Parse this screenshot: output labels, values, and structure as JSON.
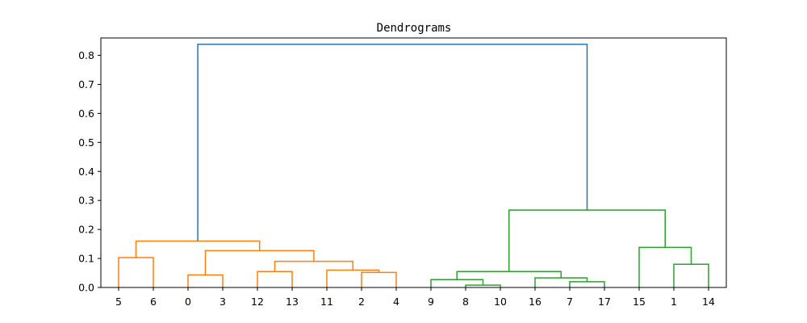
{
  "chart_data": {
    "type": "dendrogram",
    "title": "Dendrograms",
    "xlabel": "",
    "ylabel": "",
    "ylim": [
      0,
      0.86
    ],
    "y_ticks": [
      0.0,
      0.1,
      0.2,
      0.3,
      0.4,
      0.5,
      0.6,
      0.7,
      0.8
    ],
    "leaf_order": [
      "5",
      "6",
      "0",
      "3",
      "12",
      "13",
      "11",
      "2",
      "4",
      "9",
      "8",
      "10",
      "16",
      "7",
      "17",
      "15",
      "1",
      "14"
    ],
    "colors": {
      "cluster_a": "#ff7f0e",
      "cluster_b": "#2ca02c",
      "root": "#1f77b4"
    },
    "merges": [
      {
        "left": "5",
        "right": "6",
        "height": 0.103,
        "color": "cluster_a"
      },
      {
        "left": "0",
        "right": "3",
        "height": 0.043,
        "color": "cluster_a"
      },
      {
        "left": "2",
        "right": "4",
        "height": 0.052,
        "color": "cluster_a"
      },
      {
        "left": "11",
        "right": "(2,4)",
        "height": 0.06,
        "color": "cluster_a"
      },
      {
        "left": "12",
        "right": "13",
        "height": 0.055,
        "color": "cluster_a"
      },
      {
        "left": "(12,13)",
        "right": "(11,2,4)",
        "height": 0.09,
        "color": "cluster_a"
      },
      {
        "left": "(0,3)",
        "right": "(12,13,11,2,4)",
        "height": 0.127,
        "color": "cluster_a"
      },
      {
        "left": "(5,6)",
        "right": "(0,3,...)",
        "height": 0.16,
        "color": "cluster_a"
      },
      {
        "left": "8",
        "right": "10",
        "height": 0.008,
        "color": "cluster_b"
      },
      {
        "left": "9",
        "right": "(8,10)",
        "height": 0.027,
        "color": "cluster_b"
      },
      {
        "left": "7",
        "right": "17",
        "height": 0.02,
        "color": "cluster_b"
      },
      {
        "left": "16",
        "right": "(7,17)",
        "height": 0.033,
        "color": "cluster_b"
      },
      {
        "left": "(9,8,10)",
        "right": "(16,7,17)",
        "height": 0.055,
        "color": "cluster_b"
      },
      {
        "left": "1",
        "right": "14",
        "height": 0.08,
        "color": "cluster_b"
      },
      {
        "left": "15",
        "right": "(1,14)",
        "height": 0.138,
        "color": "cluster_b"
      },
      {
        "left": "(9,...,17)",
        "right": "(15,1,14)",
        "height": 0.267,
        "color": "cluster_b"
      },
      {
        "left": "(5,...,4)",
        "right": "(9,...,14)",
        "height": 0.838,
        "color": "root"
      }
    ]
  }
}
